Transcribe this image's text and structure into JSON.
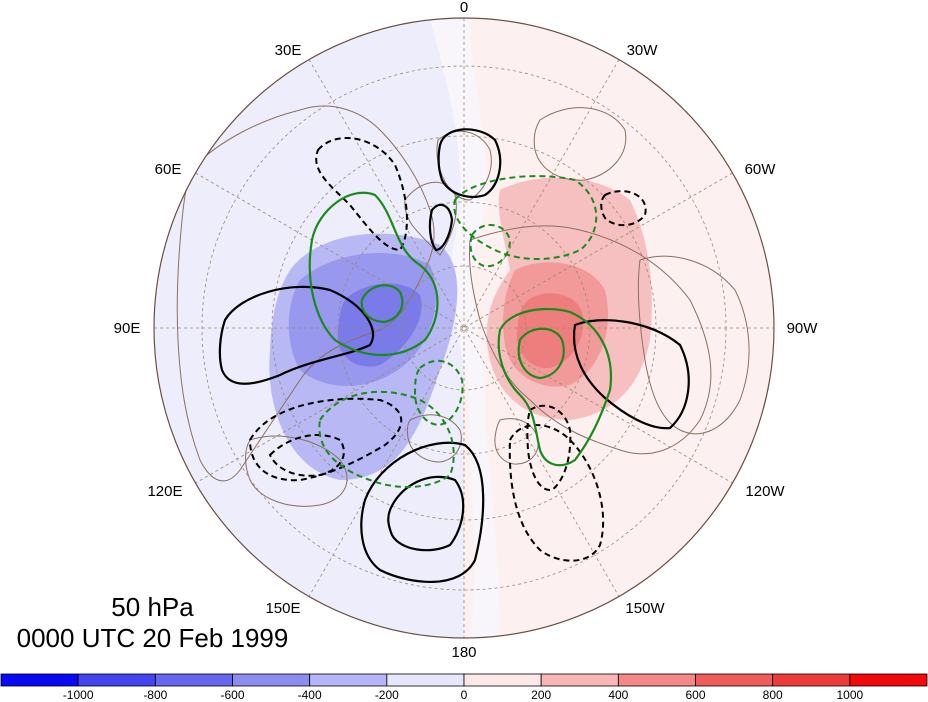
{
  "title": {
    "level": "50 hPa",
    "time": "0000 UTC 20 Feb 1999"
  },
  "longitude_labels": [
    "0",
    "30W",
    "60W",
    "90W",
    "120W",
    "150W",
    "180",
    "150E",
    "120E",
    "90E",
    "60E",
    "30E"
  ],
  "colorbar": {
    "ticks": [
      "-1000",
      "-800",
      "-600",
      "-400",
      "-200",
      "0",
      "200",
      "400",
      "600",
      "800",
      "1000"
    ],
    "colors": [
      "#0a0af2",
      "#4444f0",
      "#6666ee",
      "#8d8df0",
      "#b4b4f6",
      "#e6e6fc",
      "#fde8e8",
      "#f8b6b6",
      "#f48888",
      "#f05c5c",
      "#ee3a3a",
      "#f00a0a"
    ]
  },
  "colors": {
    "negative_contour": "#000000",
    "green_contour": "#1a8a1a",
    "coastline": "#8a7060",
    "graticule": "#9c8870"
  }
}
